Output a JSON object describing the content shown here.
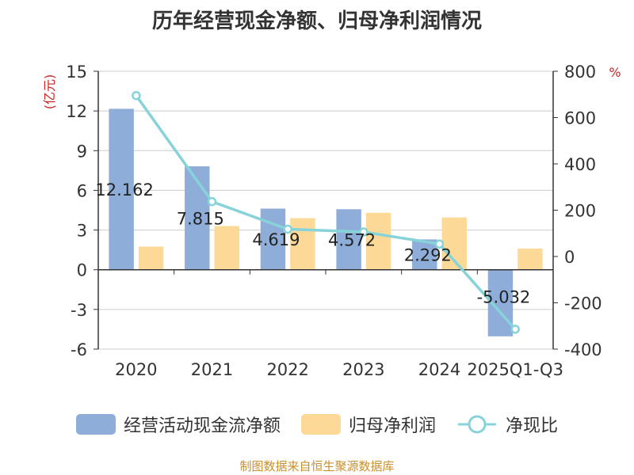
{
  "chart_data": {
    "type": "bar",
    "title": "历年经营现金净额、归母净利润情况",
    "categories": [
      "2020",
      "2021",
      "2022",
      "2023",
      "2024",
      "2025Q1-Q3"
    ],
    "series": [
      {
        "name": "经营活动现金流净额",
        "type": "bar",
        "axis": "left",
        "color": "#8eadd9",
        "values": [
          12.162,
          7.815,
          4.619,
          4.572,
          2.292,
          -5.032
        ],
        "labels": [
          "12.162",
          "7.815",
          "4.619",
          "4.572",
          "2.292",
          "-5.032"
        ]
      },
      {
        "name": "归母净利润",
        "type": "bar",
        "axis": "left",
        "color": "#fdd998",
        "values": [
          1.75,
          3.3,
          3.9,
          4.3,
          3.95,
          1.6
        ]
      },
      {
        "name": "净现比",
        "type": "line",
        "axis": "right",
        "color": "#86d3d9",
        "values": [
          695,
          237,
          118,
          106,
          54,
          -314
        ]
      }
    ],
    "y_left": {
      "label": "(亿元)",
      "range": [
        -6,
        15
      ],
      "ticks": [
        -6,
        -3,
        0,
        3,
        6,
        9,
        12,
        15
      ]
    },
    "y_right": {
      "label": "%",
      "range": [
        -400,
        800
      ],
      "ticks": [
        -400,
        -200,
        0,
        200,
        400,
        600,
        800
      ]
    },
    "grid": true,
    "legend_position": "bottom"
  },
  "footer": "制图数据来自恒生聚源数据库"
}
